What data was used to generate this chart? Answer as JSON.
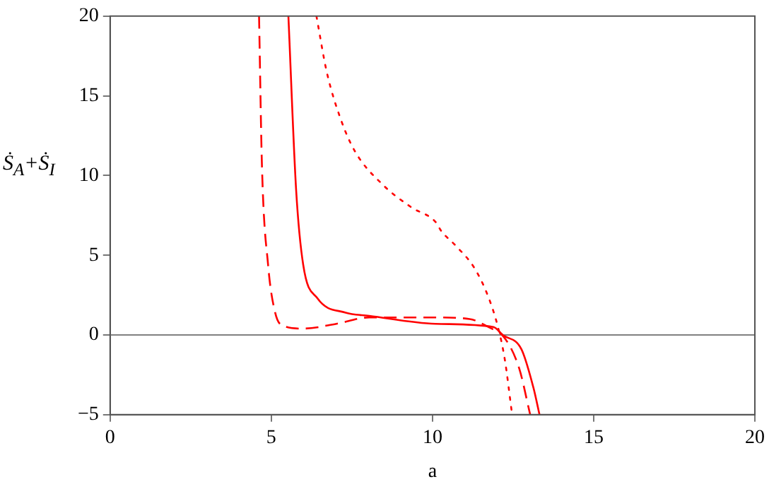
{
  "chart_data": {
    "type": "line",
    "xlabel": "a",
    "ylabel": "Ṡ$_{A}$+Ṡ$_{I}$",
    "xlim": [
      0,
      20
    ],
    "ylim": [
      -5,
      20
    ],
    "xticks": [
      0,
      5,
      10,
      15,
      20
    ],
    "yticks": [
      -5,
      0,
      5,
      10,
      15,
      20
    ],
    "grid": false,
    "legend": false,
    "marker": "none",
    "ref_lines": [
      {
        "axis": "y",
        "value": 0,
        "color": "#808080"
      }
    ],
    "series": [
      {
        "color": "#ff0000",
        "line_style": "solid",
        "x": [
          5.53,
          5.77,
          5.99,
          6.43,
          7.31,
          8.04,
          10.09,
          11.89,
          12.18,
          12.76,
          13.13,
          13.32
        ],
        "values": [
          20,
          9.1,
          4.4,
          2.3,
          1.4,
          1.2,
          0.7,
          0.5,
          0,
          -0.9,
          -3.3,
          -5
        ]
      },
      {
        "color": "#ff0000",
        "line_style": "dashed",
        "x": [
          4.62,
          4.71,
          4.9,
          5.12,
          5.34,
          5.99,
          7.02,
          8.04,
          10.09,
          11.15,
          11.73,
          12.24,
          12.69,
          13.03
        ],
        "values": [
          20,
          10.6,
          4.4,
          1.4,
          0.6,
          0.4,
          0.7,
          1.1,
          1.1,
          1,
          0.5,
          -0.2,
          -2.1,
          -5
        ]
      },
      {
        "color": "#ff0000",
        "line_style": "dotted",
        "x": [
          6.4,
          6.72,
          7.16,
          7.6,
          8.47,
          9.35,
          10.09,
          10.28,
          10.72,
          11.3,
          11.73,
          12.03,
          12.24,
          12.47
        ],
        "values": [
          20,
          16.5,
          13.5,
          11.5,
          9.4,
          8,
          7.1,
          6.5,
          5.6,
          4.2,
          2.4,
          0.5,
          -1.5,
          -5
        ]
      }
    ]
  }
}
